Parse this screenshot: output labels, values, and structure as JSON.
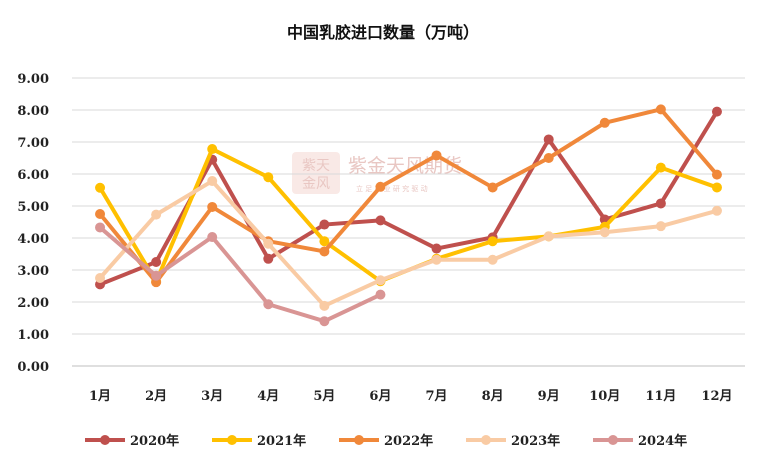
{
  "chart_data": {
    "type": "line",
    "title": "中国乳胶进口数量（万吨）",
    "categories": [
      "1月",
      "2月",
      "3月",
      "4月",
      "5月",
      "6月",
      "7月",
      "8月",
      "9月",
      "10月",
      "11月",
      "12月"
    ],
    "yticks": [
      "0.00",
      "1.00",
      "2.00",
      "3.00",
      "4.00",
      "5.00",
      "6.00",
      "7.00",
      "8.00",
      "9.00"
    ],
    "ylim": [
      0,
      9
    ],
    "grid": true,
    "legend_position": "bottom",
    "series": [
      {
        "name": "2020年",
        "color": "#bf504d",
        "values": [
          2.55,
          3.25,
          6.45,
          3.35,
          4.42,
          4.55,
          3.67,
          4.02,
          7.08,
          4.58,
          5.08,
          7.95
        ]
      },
      {
        "name": "2021年",
        "color": "#ffc000",
        "values": [
          5.57,
          2.63,
          6.78,
          5.9,
          3.9,
          2.65,
          3.35,
          3.9,
          4.05,
          4.35,
          6.2,
          5.58
        ]
      },
      {
        "name": "2022年",
        "color": "#f0883a",
        "values": [
          4.75,
          2.62,
          4.97,
          3.9,
          3.58,
          5.6,
          6.58,
          5.58,
          6.5,
          7.6,
          8.02,
          5.98
        ]
      },
      {
        "name": "2023年",
        "color": "#f9cba4",
        "values": [
          2.75,
          4.73,
          5.78,
          3.82,
          1.88,
          2.68,
          3.32,
          3.32,
          4.05,
          4.18,
          4.37,
          4.85
        ]
      },
      {
        "name": "2024年",
        "color": "#d99594",
        "values": [
          4.33,
          2.82,
          4.03,
          1.93,
          1.4,
          2.23,
          null,
          null,
          null,
          null,
          null,
          null
        ]
      }
    ]
  },
  "watermark": {
    "logo_top": "紫天",
    "logo_bottom": "金风",
    "company": "紫金天风期货",
    "sub": "立 足 产 业   研 究 驱 动"
  }
}
